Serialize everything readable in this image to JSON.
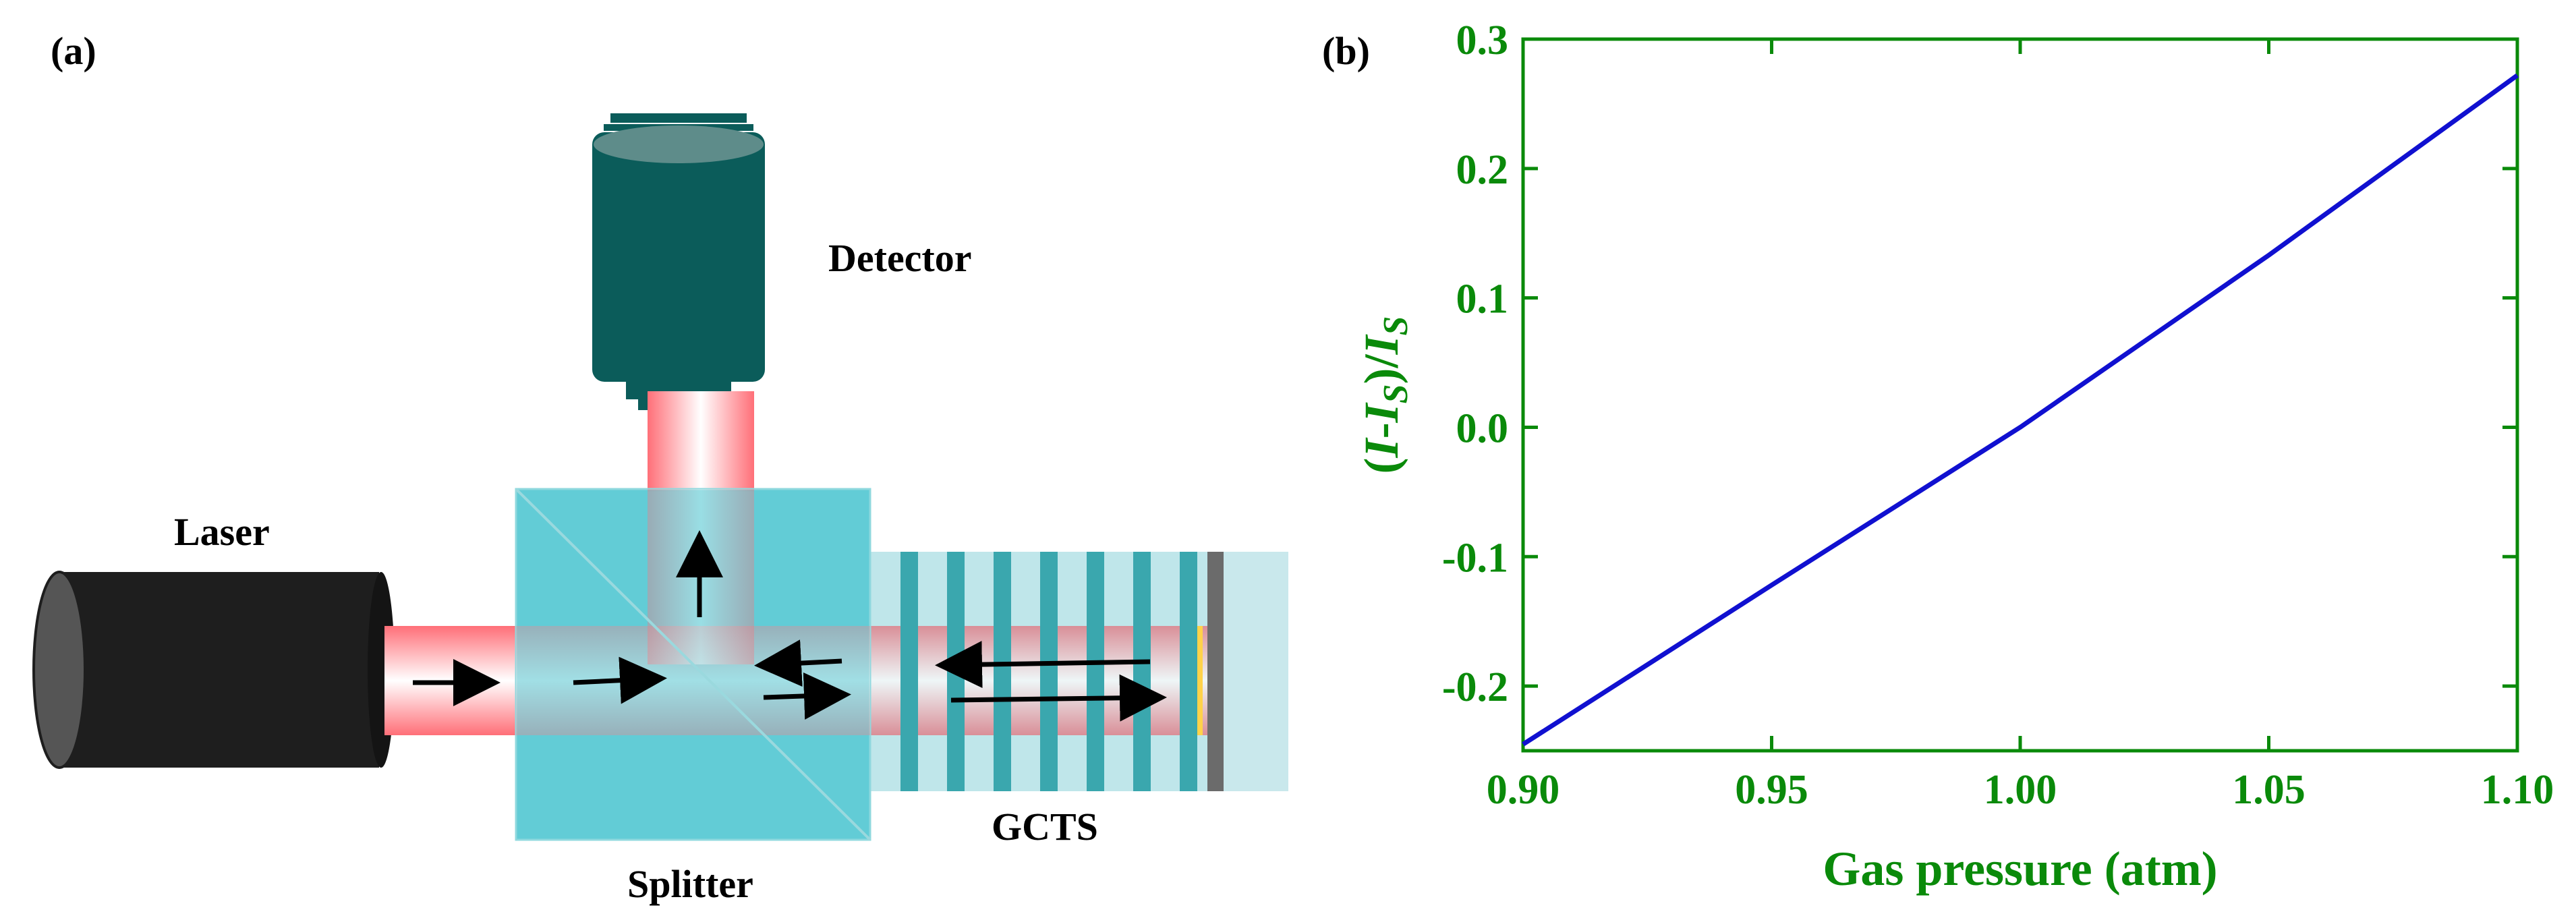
{
  "panel_a": {
    "label": "(a)",
    "components": {
      "laser": "Laser",
      "detector": "Detector",
      "splitter": "Splitter",
      "gcts": "GCTS"
    }
  },
  "panel_b": {
    "label": "(b)"
  },
  "colors": {
    "axis": "#0a8a0a",
    "line": "#1010d0",
    "beam": "#ff7f85",
    "splitter": "#55c8d2",
    "detector": "#0b5c5a",
    "laser": "#1e1e1e"
  },
  "chart_data": {
    "type": "line",
    "title": "",
    "xlabel": "Gas pressure (atm)",
    "ylabel_parts": [
      "(",
      "I",
      "-",
      "I",
      "S",
      ")/",
      "I",
      "S"
    ],
    "xlim": [
      0.9,
      1.1
    ],
    "ylim": [
      -0.25,
      0.3
    ],
    "x_ticks": [
      0.9,
      0.95,
      1.0,
      1.05,
      1.1
    ],
    "x_tick_labels": [
      "0.90",
      "0.95",
      "1.00",
      "1.05",
      "1.10"
    ],
    "y_ticks": [
      -0.2,
      -0.1,
      0.0,
      0.1,
      0.2,
      0.3
    ],
    "y_tick_labels": [
      "-0.2",
      "-0.1",
      "0.0",
      "0.1",
      "0.2",
      "0.3"
    ],
    "series": [
      {
        "name": "(I-IS)/IS",
        "x": [
          0.9,
          0.95,
          1.0,
          1.05,
          1.1
        ],
        "y": [
          -0.245,
          -0.122,
          0.0,
          0.133,
          0.272
        ]
      }
    ],
    "grid": false
  }
}
